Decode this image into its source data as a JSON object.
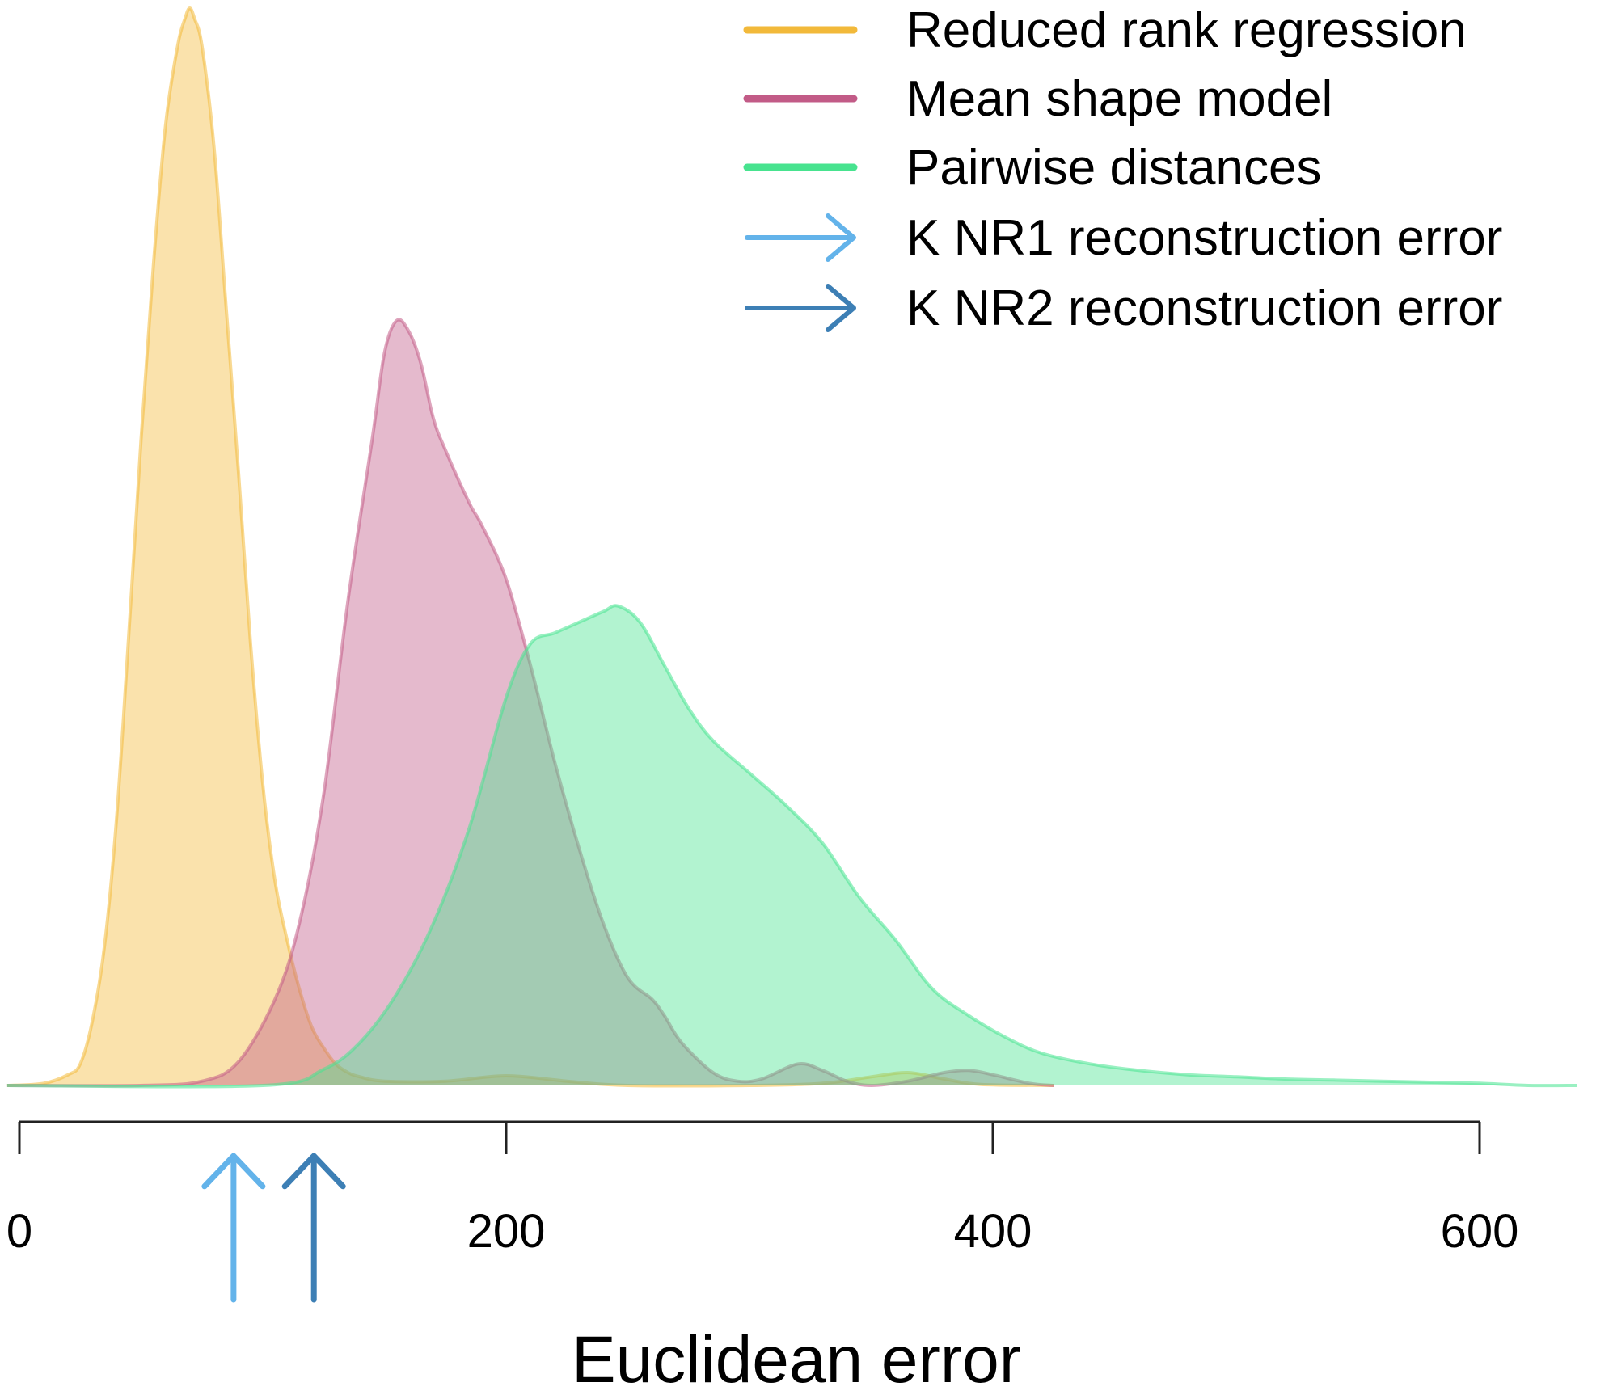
{
  "chart_data": {
    "type": "area",
    "title": "",
    "xlabel": "Euclidean error",
    "ylabel": "",
    "xlim": [
      0,
      600
    ],
    "x_ticks": [
      0,
      200,
      400,
      600
    ],
    "x_tick_labels": [
      "0",
      "200",
      "400",
      "600"
    ],
    "grid": false,
    "legend_position": "top-right",
    "series": [
      {
        "name": "Reduced rank regression",
        "color": "#F2B93A",
        "points": [
          [
            -5,
            0.0
          ],
          [
            10,
            0.002
          ],
          [
            20,
            0.01
          ],
          [
            25,
            0.02
          ],
          [
            30,
            0.06
          ],
          [
            35,
            0.13
          ],
          [
            40,
            0.25
          ],
          [
            45,
            0.42
          ],
          [
            50,
            0.6
          ],
          [
            55,
            0.76
          ],
          [
            60,
            0.89
          ],
          [
            65,
            0.965
          ],
          [
            68,
            0.99
          ],
          [
            70,
            1.0
          ],
          [
            72,
            0.99
          ],
          [
            75,
            0.965
          ],
          [
            80,
            0.87
          ],
          [
            85,
            0.72
          ],
          [
            90,
            0.57
          ],
          [
            95,
            0.41
          ],
          [
            100,
            0.28
          ],
          [
            105,
            0.19
          ],
          [
            110,
            0.135
          ],
          [
            115,
            0.09
          ],
          [
            120,
            0.055
          ],
          [
            125,
            0.035
          ],
          [
            130,
            0.02
          ],
          [
            135,
            0.012
          ],
          [
            140,
            0.008
          ],
          [
            150,
            0.004
          ],
          [
            175,
            0.004
          ],
          [
            200,
            0.009
          ],
          [
            225,
            0.004
          ],
          [
            250,
            0.0
          ],
          [
            300,
            0.0
          ],
          [
            330,
            0.002
          ],
          [
            350,
            0.008
          ],
          [
            365,
            0.012
          ],
          [
            380,
            0.006
          ],
          [
            395,
            0.001
          ],
          [
            425,
            0.0
          ]
        ]
      },
      {
        "name": "Mean shape model",
        "color": "#C25B87",
        "points": [
          [
            -5,
            0.0
          ],
          [
            50,
            0.0
          ],
          [
            75,
            0.004
          ],
          [
            90,
            0.022
          ],
          [
            105,
            0.08
          ],
          [
            115,
            0.15
          ],
          [
            125,
            0.27
          ],
          [
            135,
            0.45
          ],
          [
            145,
            0.6
          ],
          [
            150,
            0.68
          ],
          [
            155,
            0.71
          ],
          [
            160,
            0.7
          ],
          [
            165,
            0.67
          ],
          [
            170,
            0.62
          ],
          [
            175,
            0.59
          ],
          [
            185,
            0.54
          ],
          [
            190,
            0.52
          ],
          [
            200,
            0.47
          ],
          [
            210,
            0.39
          ],
          [
            220,
            0.3
          ],
          [
            230,
            0.22
          ],
          [
            240,
            0.15
          ],
          [
            250,
            0.1
          ],
          [
            260,
            0.08
          ],
          [
            265,
            0.065
          ],
          [
            272,
            0.04
          ],
          [
            285,
            0.012
          ],
          [
            295,
            0.004
          ],
          [
            305,
            0.006
          ],
          [
            320,
            0.02
          ],
          [
            330,
            0.014
          ],
          [
            340,
            0.004
          ],
          [
            350,
            0.0
          ],
          [
            365,
            0.004
          ],
          [
            380,
            0.012
          ],
          [
            390,
            0.014
          ],
          [
            400,
            0.01
          ],
          [
            415,
            0.002
          ],
          [
            425,
            0.0
          ]
        ]
      },
      {
        "name": "Pairwise distances",
        "color": "#47E38F",
        "points": [
          [
            -5,
            0.0
          ],
          [
            100,
            0.0
          ],
          [
            125,
            0.015
          ],
          [
            140,
            0.04
          ],
          [
            155,
            0.085
          ],
          [
            170,
            0.15
          ],
          [
            185,
            0.24
          ],
          [
            200,
            0.36
          ],
          [
            210,
            0.41
          ],
          [
            220,
            0.42
          ],
          [
            230,
            0.43
          ],
          [
            240,
            0.44
          ],
          [
            246,
            0.445
          ],
          [
            255,
            0.43
          ],
          [
            265,
            0.39
          ],
          [
            275,
            0.35
          ],
          [
            285,
            0.32
          ],
          [
            300,
            0.29
          ],
          [
            315,
            0.26
          ],
          [
            330,
            0.225
          ],
          [
            345,
            0.175
          ],
          [
            360,
            0.135
          ],
          [
            375,
            0.09
          ],
          [
            390,
            0.065
          ],
          [
            405,
            0.045
          ],
          [
            420,
            0.03
          ],
          [
            440,
            0.02
          ],
          [
            460,
            0.014
          ],
          [
            480,
            0.01
          ],
          [
            500,
            0.008
          ],
          [
            520,
            0.006
          ],
          [
            540,
            0.005
          ],
          [
            560,
            0.004
          ],
          [
            580,
            0.003
          ],
          [
            600,
            0.002
          ],
          [
            620,
            0.0
          ],
          [
            640,
            0.0
          ]
        ]
      }
    ],
    "markers": [
      {
        "name": "K NR1 reconstruction error",
        "x": 88,
        "color": "#63B3EA"
      },
      {
        "name": "K NR2 reconstruction error",
        "x": 121,
        "color": "#3D7FB5"
      }
    ]
  }
}
